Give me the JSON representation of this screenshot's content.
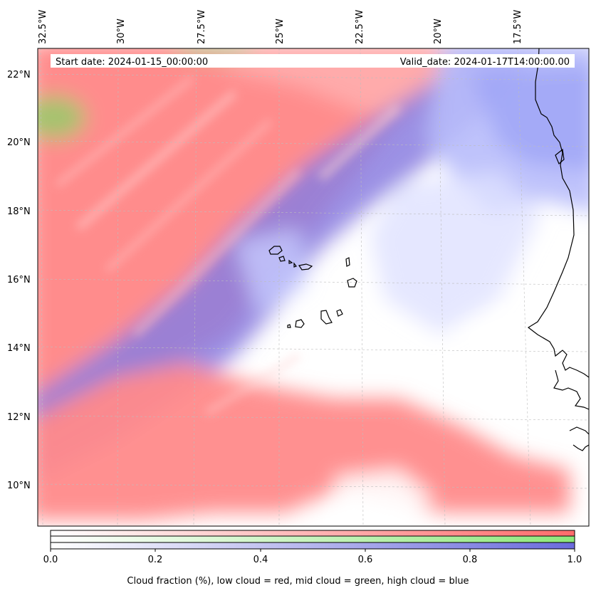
{
  "header": {
    "start_date": "Start date: 2024-01-15_00:00:00",
    "valid_date": "Valid_date: 2024-01-17T14:00:00.00"
  },
  "map": {
    "longitude_labels": [
      "32.5°W",
      "30°W",
      "27.5°W",
      "25°W",
      "22.5°W",
      "20°W",
      "17.5°W"
    ],
    "latitude_labels": [
      "22°N",
      "20°N",
      "18°N",
      "16°N",
      "14°N",
      "12°N",
      "10°N"
    ],
    "lon_range": [
      -32.5,
      -15.0
    ],
    "lat_range": [
      8.8,
      22.8
    ],
    "gridlines": true,
    "coastline_color": "#000000"
  },
  "colorbar": {
    "ticks": [
      "0.0",
      "0.2",
      "0.4",
      "0.6",
      "0.8",
      "1.0"
    ],
    "caption": "Cloud fraction (%), low cloud = red, mid cloud = green, high cloud = blue",
    "low_color": "#ff6b6b",
    "mid_color": "#8ee87a",
    "high_color": "#6b6bdc"
  }
}
